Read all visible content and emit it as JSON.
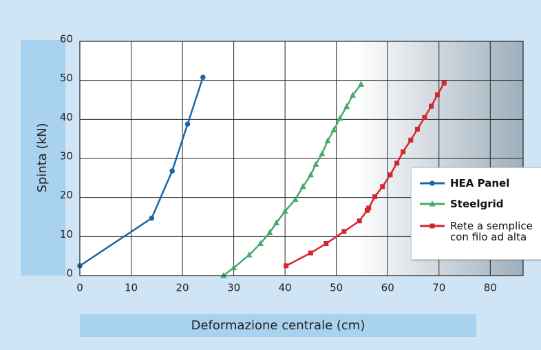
{
  "chart_data": {
    "type": "line",
    "xlabel": "Deformazione centrale (cm)",
    "ylabel": "Spinta (kN)",
    "xlim": [
      0,
      86.4
    ],
    "xticks": [
      0,
      10,
      20,
      30,
      40,
      50,
      60,
      70,
      80
    ],
    "ylim": [
      0,
      60
    ],
    "yticks": [
      0,
      10,
      20,
      30,
      40,
      50,
      60
    ],
    "grid": true,
    "series": [
      {
        "name": "HEA Panel",
        "color": "#1b67a6",
        "marker": "circle",
        "x": [
          0,
          14,
          18,
          21,
          24
        ],
        "values": [
          2.5,
          14.7,
          26.8,
          38.8,
          50.8
        ]
      },
      {
        "name": "Steelgrid",
        "color": "#45ab6c",
        "marker": "triangle",
        "x": [
          28,
          30,
          33,
          35.2,
          37,
          38.3,
          40,
          42,
          43.5,
          45,
          46,
          47.2,
          48.3,
          49.5,
          50.7,
          52,
          53.2,
          54.8
        ],
        "values": [
          0,
          2,
          5.3,
          8.2,
          11,
          13.5,
          16.5,
          19.5,
          22.8,
          25.8,
          28.5,
          31.2,
          34.5,
          37.3,
          40.3,
          43.3,
          46.2,
          49
        ]
      },
      {
        "name": "Rete a semplice con filo ad alta",
        "color": "#d3262f",
        "marker": "square",
        "x": [
          40.2,
          45,
          48,
          51.5,
          54.5,
          56,
          56.3,
          57.5,
          59,
          60.5,
          61.8,
          63,
          64.5,
          65.8,
          67.2,
          68.5,
          69.7,
          71
        ],
        "values": [
          2.5,
          5.8,
          8.2,
          11.3,
          14,
          16.7,
          17.3,
          20.2,
          22.8,
          25.8,
          28.8,
          31.7,
          34.7,
          37.5,
          40.5,
          43.4,
          46.3,
          49.3
        ]
      }
    ]
  }
}
